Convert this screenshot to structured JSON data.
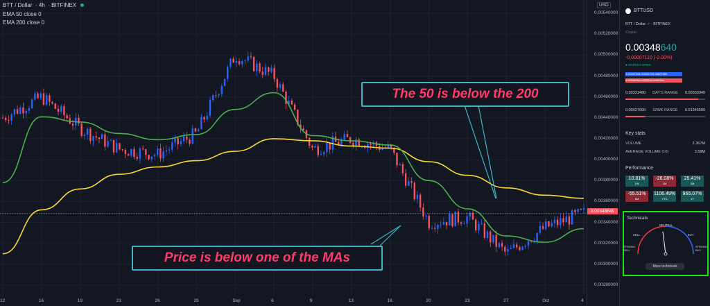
{
  "legend": {
    "symbol": "BTT / Dollar",
    "interval": "4h",
    "exchange": "BITFINEX",
    "ema50": "EMA 50 close 0",
    "ema200": "EMA 200 close 0"
  },
  "price_axis": {
    "currency": "USD",
    "ticks": [
      "0.00540000",
      "0.00520000",
      "0.00500000",
      "0.00480000",
      "0.00460000",
      "0.00440000",
      "0.00420000",
      "0.00400000",
      "0.00380000",
      "0.00360000",
      "0.00340000",
      "0.00320000",
      "0.00300000",
      "0.00280000"
    ],
    "last_price_tag": "0.00348649"
  },
  "x_axis": {
    "ticks": [
      "12",
      "16",
      "19",
      "23",
      "26",
      "29",
      "Sep",
      "6",
      "9",
      "13",
      "16",
      "20",
      "23",
      "27",
      "Oct",
      "4"
    ]
  },
  "annotations": {
    "top": "The 50 is below the 200",
    "bottom": "Price is below one of the MAs"
  },
  "colors": {
    "ema50": "#4caf50",
    "ema200": "#fdd835",
    "up_candle": "#2962ff",
    "down_candle": "#f7525f",
    "highlight_box": "#22e01d",
    "annotation_text": "#ff3b6b",
    "annotation_border": "#3fb5c7"
  },
  "chart_data": {
    "type": "line",
    "title": "BTT / Dollar · 4h · BITFINEX",
    "x": [
      "12",
      "16",
      "19",
      "23",
      "26",
      "29",
      "Sep",
      "6",
      "9",
      "13",
      "16",
      "20",
      "23",
      "27",
      "Oct",
      "4"
    ],
    "ylim": [
      0.0027,
      0.0055
    ],
    "series": [
      {
        "name": "EMA 50 close 0",
        "values": [
          0.00378,
          0.00441,
          0.00436,
          0.00425,
          0.00419,
          0.00424,
          0.00448,
          0.00464,
          0.00423,
          0.00418,
          0.00414,
          0.0038,
          0.00353,
          0.00327,
          0.00321,
          0.00334
        ]
      },
      {
        "name": "EMA 200 close 0",
        "values": [
          0.0031,
          0.00352,
          0.00372,
          0.00386,
          0.00393,
          0.00399,
          0.00408,
          0.0042,
          0.00418,
          0.00413,
          0.00411,
          0.00398,
          0.00385,
          0.00373,
          0.00366,
          0.00363
        ]
      },
      {
        "name": "Price",
        "values": [
          0.0044,
          0.0046,
          0.0043,
          0.0041,
          0.00405,
          0.00425,
          0.005,
          0.0048,
          0.0041,
          0.0042,
          0.0041,
          0.0034,
          0.00345,
          0.0031,
          0.00335,
          0.00349
        ]
      }
    ]
  },
  "panel": {
    "symbol": "BTTUSD",
    "subtitle": "BTT / Dollar",
    "exchange": "BITFINEX",
    "type": "Crypto",
    "price_main": "0.00348",
    "price_tail": "640",
    "change": "-0.00007110 (-2.00%)",
    "market": "MARKET OPEN",
    "bid": "0.00347540×10264723.39627585",
    "ask": "0.00348350×5200294.6683764",
    "day_low": "0.00331480",
    "day_label": "DAY'S RANGE",
    "day_high": "0.00350340",
    "wk_low": "0.00027000",
    "wk_label": "52WK RANGE",
    "wk_high": "0.01346500",
    "key_stats": "Key stats",
    "volume_label": "VOLUME",
    "volume": "2.367M",
    "avg_volume_label": "AVERAGE VOLUME (10)",
    "avg_volume": "3.59M",
    "performance": "Performance",
    "perf": [
      {
        "value": "10.81%",
        "period": "1W"
      },
      {
        "value": "-26.08%",
        "period": "1M"
      },
      {
        "value": "25.41%",
        "period": "3M"
      },
      {
        "value": "-55.51%",
        "period": "6M"
      },
      {
        "value": "1106.49%",
        "period": "YTD"
      },
      {
        "value": "965.07%",
        "period": "1Y"
      }
    ],
    "technicals": "Technicals",
    "gauge_neutral": "NEUTRAL",
    "gauge_sell": "SELL",
    "gauge_buy": "BUY",
    "gauge_strong_sell": "STRONG SELL",
    "gauge_strong_buy": "STRONG BUY",
    "more_technicals": "More technicals"
  }
}
